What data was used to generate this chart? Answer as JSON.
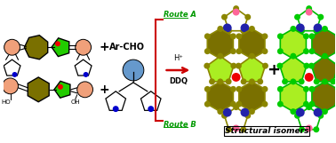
{
  "background_color": "#ffffff",
  "title_text": "Structural isomers",
  "route_a_text": "Route A",
  "route_b_text": "Route B",
  "arrow_text1": "H⁺",
  "arrow_text2": "DDQ",
  "ar_cho_text": "Ar-CHO",
  "ho_text": "HO",
  "oh_text": "OH",
  "colors": {
    "salmon": "#F0A07A",
    "olive_dark": "#7A7000",
    "olive_bond": "#8B8000",
    "green_bright": "#22CC00",
    "blue_circle": "#6699CC",
    "red": "#EE0000",
    "blue_dot": "#0000CC",
    "pink_dot": "#FF6699",
    "yellow_green": "#AAEE22",
    "black": "#000000",
    "red_arrow": "#CC0000",
    "green_text": "#009900",
    "white": "#ffffff"
  },
  "figsize": [
    3.78,
    1.61
  ],
  "dpi": 100
}
